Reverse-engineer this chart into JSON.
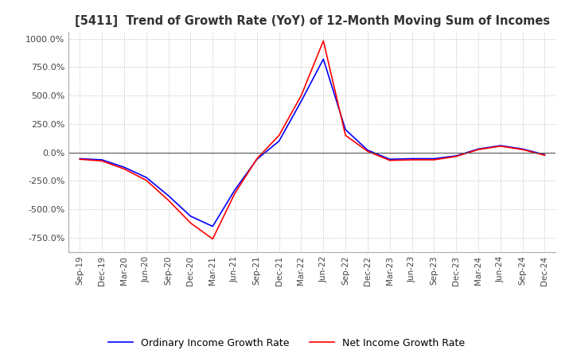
{
  "title": "[5411]  Trend of Growth Rate (YoY) of 12-Month Moving Sum of Incomes",
  "ylim": [
    -875,
    1062.5
  ],
  "yticks": [
    -750,
    -500,
    -250,
    0,
    250,
    500,
    750,
    1000
  ],
  "ytick_labels": [
    "-750.0%",
    "-500.0%",
    "-250.0%",
    "0.0%",
    "250.0%",
    "500.0%",
    "750.0%",
    "1000.0%"
  ],
  "background_color": "#ffffff",
  "grid_color": "#bbbbbb",
  "ordinary_color": "#0000ff",
  "net_color": "#ff0000",
  "legend_ordinary": "Ordinary Income Growth Rate",
  "legend_net": "Net Income Growth Rate",
  "x_labels": [
    "Sep-19",
    "Dec-19",
    "Mar-20",
    "Jun-20",
    "Sep-20",
    "Dec-20",
    "Mar-21",
    "Jun-21",
    "Sep-21",
    "Dec-21",
    "Mar-22",
    "Jun-22",
    "Sep-22",
    "Dec-22",
    "Mar-23",
    "Jun-23",
    "Sep-23",
    "Dec-23",
    "Mar-24",
    "Jun-24",
    "Sep-24",
    "Dec-24"
  ],
  "ordinary_y": [
    -55,
    -65,
    -130,
    -220,
    -380,
    -560,
    -650,
    -330,
    -60,
    100,
    450,
    820,
    200,
    20,
    -60,
    -55,
    -55,
    -30,
    30,
    60,
    30,
    -20
  ],
  "net_y": [
    -60,
    -75,
    -145,
    -245,
    -420,
    -620,
    -760,
    -360,
    -55,
    150,
    500,
    980,
    150,
    10,
    -70,
    -65,
    -65,
    -35,
    25,
    55,
    25,
    -25
  ]
}
